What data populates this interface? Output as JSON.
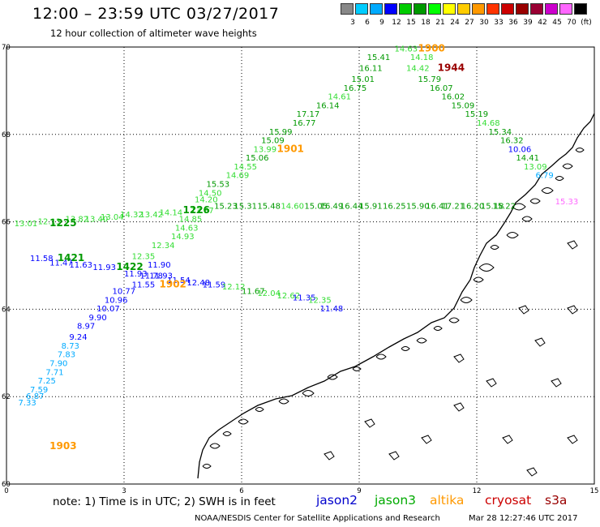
{
  "header": {
    "title": "12:00 – 23:59 UTC 03/27/2017",
    "subtitle": "12 hour collection of altimeter wave heights"
  },
  "legend": {
    "ticks": [
      "3",
      "6",
      "9",
      "12",
      "15",
      "18",
      "21",
      "24",
      "27",
      "30",
      "33",
      "36",
      "39",
      "42",
      "45",
      "70",
      "(ft)"
    ],
    "colors": [
      "#888888",
      "#00ccff",
      "#00aaff",
      "#0000ff",
      "#00cc00",
      "#009900",
      "#00ff00",
      "#ffff00",
      "#ffcc00",
      "#ff9900",
      "#ff3300",
      "#cc0000",
      "#990000",
      "#990033",
      "#cc00cc",
      "#ff66ff",
      "#000000"
    ]
  },
  "axes": {
    "x_ticks": [
      "0",
      "3",
      "6",
      "9",
      "12",
      "15"
    ],
    "y_ticks": [
      "70",
      "68",
      "66",
      "64",
      "62",
      "60"
    ]
  },
  "chart_data": {
    "type": "scatter",
    "title": "12:00 – 23:59 UTC 03/27/2017",
    "subtitle": "12 hour collection of altimeter wave heights",
    "x_range": [
      0,
      15
    ],
    "y_range": [
      60,
      70
    ],
    "units": "ft",
    "tracks": [
      {
        "mission": "jason3",
        "time": "1900",
        "time_color": "#ff9900",
        "time_pos": [
          10.5,
          69.9
        ],
        "points": [
          {
            "v": "14.63",
            "x": 9.9,
            "y": 69.9,
            "c": "#33dd33"
          },
          {
            "v": "15.41",
            "x": 9.2,
            "y": 69.7,
            "c": "#009900"
          },
          {
            "v": "14.18",
            "x": 10.3,
            "y": 69.7,
            "c": "#33dd33"
          },
          {
            "v": "16.11",
            "x": 9.0,
            "y": 69.45,
            "c": "#009900"
          },
          {
            "v": "14.42",
            "x": 10.2,
            "y": 69.45,
            "c": "#33dd33"
          },
          {
            "v": "15.01",
            "x": 8.8,
            "y": 69.2,
            "c": "#009900"
          },
          {
            "v": "15.79",
            "x": 10.5,
            "y": 69.2,
            "c": "#009900"
          },
          {
            "v": "16.75",
            "x": 8.6,
            "y": 69.0,
            "c": "#009900"
          },
          {
            "v": "16.07",
            "x": 10.8,
            "y": 69.0,
            "c": "#009900"
          },
          {
            "v": "14.61",
            "x": 8.2,
            "y": 68.8,
            "c": "#33dd33"
          },
          {
            "v": "16.02",
            "x": 11.1,
            "y": 68.8,
            "c": "#009900"
          },
          {
            "v": "16.14",
            "x": 7.9,
            "y": 68.6,
            "c": "#009900"
          },
          {
            "v": "15.09",
            "x": 11.35,
            "y": 68.6,
            "c": "#009900"
          },
          {
            "v": "17.17",
            "x": 7.4,
            "y": 68.4,
            "c": "#009900"
          },
          {
            "v": "15.19",
            "x": 11.7,
            "y": 68.4,
            "c": "#009900"
          },
          {
            "v": "16.77",
            "x": 7.3,
            "y": 68.2,
            "c": "#009900"
          },
          {
            "v": "14.68",
            "x": 12.0,
            "y": 68.2,
            "c": "#33dd33"
          },
          {
            "v": "15.99",
            "x": 6.7,
            "y": 68.0,
            "c": "#009900"
          },
          {
            "v": "15.34",
            "x": 12.3,
            "y": 68.0,
            "c": "#009900"
          },
          {
            "v": "15.09",
            "x": 6.5,
            "y": 67.8,
            "c": "#009900"
          },
          {
            "v": "16.32",
            "x": 12.6,
            "y": 67.8,
            "c": "#009900"
          },
          {
            "v": "13.99",
            "x": 6.3,
            "y": 67.6,
            "c": "#33dd33"
          },
          {
            "v": "15.06",
            "x": 6.1,
            "y": 67.4,
            "c": "#009900"
          },
          {
            "v": "14.41",
            "x": 13.0,
            "y": 67.4,
            "c": "#009900"
          },
          {
            "v": "14.55",
            "x": 5.8,
            "y": 67.2,
            "c": "#33dd33"
          },
          {
            "v": "13.09",
            "x": 13.2,
            "y": 67.2,
            "c": "#33dd33"
          },
          {
            "v": "14.69",
            "x": 5.6,
            "y": 67.0,
            "c": "#33dd33"
          },
          {
            "v": "15.53",
            "x": 5.1,
            "y": 66.8,
            "c": "#009900"
          },
          {
            "v": "14.50",
            "x": 4.9,
            "y": 66.6,
            "c": "#33dd33"
          },
          {
            "v": "14.20",
            "x": 4.8,
            "y": 66.45,
            "c": "#33dd33"
          },
          {
            "v": "13.87",
            "x": 4.7,
            "y": 66.2,
            "c": "#33dd33"
          },
          {
            "v": "14.85",
            "x": 4.4,
            "y": 66.0,
            "c": "#33dd33"
          },
          {
            "v": "14.63",
            "x": 4.3,
            "y": 65.8,
            "c": "#33dd33"
          },
          {
            "v": "14.93",
            "x": 4.2,
            "y": 65.6,
            "c": "#33dd33"
          },
          {
            "v": "12.34",
            "x": 3.7,
            "y": 65.4,
            "c": "#33dd33"
          },
          {
            "v": "12.35",
            "x": 3.2,
            "y": 65.15,
            "c": "#33dd33"
          }
        ]
      },
      {
        "mission": "altika",
        "time": "1901",
        "time_color": "#ff9900",
        "time_pos": [
          6.9,
          67.6
        ],
        "points": []
      },
      {
        "mission": "cryosat",
        "time": "1944",
        "time_color": "#990000",
        "time_pos": [
          11.0,
          69.45
        ],
        "points": []
      },
      {
        "mission": "jason3",
        "time": "1226",
        "time_color": "#009900",
        "time_pos": [
          4.5,
          66.2
        ],
        "points": [
          {
            "v": "15.23",
            "x": 5.3,
            "y": 66.3,
            "c": "#009900"
          },
          {
            "v": "15.31",
            "x": 5.8,
            "y": 66.3,
            "c": "#009900"
          },
          {
            "v": "15.48",
            "x": 6.4,
            "y": 66.3,
            "c": "#009900"
          },
          {
            "v": "14.60",
            "x": 7.0,
            "y": 66.3,
            "c": "#33dd33"
          },
          {
            "v": "15.05",
            "x": 7.6,
            "y": 66.3,
            "c": "#009900"
          },
          {
            "v": "16.49",
            "x": 8.0,
            "y": 66.3,
            "c": "#009900"
          },
          {
            "v": "16.44",
            "x": 8.5,
            "y": 66.3,
            "c": "#009900"
          },
          {
            "v": "15.91",
            "x": 9.0,
            "y": 66.3,
            "c": "#009900"
          },
          {
            "v": "16.25",
            "x": 9.6,
            "y": 66.3,
            "c": "#009900"
          },
          {
            "v": "15.90",
            "x": 10.2,
            "y": 66.3,
            "c": "#009900"
          },
          {
            "v": "16.41",
            "x": 10.7,
            "y": 66.3,
            "c": "#009900"
          },
          {
            "v": "17.21",
            "x": 11.1,
            "y": 66.3,
            "c": "#009900"
          },
          {
            "v": "16.20",
            "x": 11.6,
            "y": 66.3,
            "c": "#009900"
          },
          {
            "v": "15.18",
            "x": 12.1,
            "y": 66.3,
            "c": "#009900"
          },
          {
            "v": "15.22",
            "x": 12.4,
            "y": 66.3,
            "c": "#009900"
          }
        ]
      },
      {
        "mission": "jason3",
        "time": "1225",
        "time_color": "#009900",
        "time_pos": [
          1.1,
          65.9
        ],
        "points": [
          {
            "v": "13.01",
            "x": 0.2,
            "y": 65.9,
            "c": "#33dd33"
          },
          {
            "v": "12.13",
            "x": 0.8,
            "y": 65.95,
            "c": "#33dd33"
          },
          {
            "v": "13.82",
            "x": 1.5,
            "y": 66.0,
            "c": "#33dd33"
          },
          {
            "v": "13.40",
            "x": 2.0,
            "y": 66.0,
            "c": "#33dd33"
          },
          {
            "v": "13.04",
            "x": 2.4,
            "y": 66.05,
            "c": "#33dd33"
          },
          {
            "v": "14.32",
            "x": 2.9,
            "y": 66.1,
            "c": "#33dd33"
          },
          {
            "v": "13.42",
            "x": 3.4,
            "y": 66.1,
            "c": "#33dd33"
          },
          {
            "v": "14.14",
            "x": 3.9,
            "y": 66.15,
            "c": "#33dd33"
          }
        ]
      },
      {
        "mission": "jason2",
        "time": "1421",
        "time_color": "#009900",
        "time_pos": [
          1.3,
          65.1
        ],
        "points": [
          {
            "v": "11.58",
            "x": 0.6,
            "y": 65.1,
            "c": "#0000ff"
          },
          {
            "v": "11.47",
            "x": 1.1,
            "y": 65.0,
            "c": "#0000ff"
          },
          {
            "v": "11.63",
            "x": 1.6,
            "y": 64.95,
            "c": "#0000ff"
          },
          {
            "v": "11.93",
            "x": 2.2,
            "y": 64.9,
            "c": "#0000ff"
          }
        ]
      },
      {
        "mission": "jason2",
        "time": "1422",
        "time_color": "#009900",
        "time_pos": [
          2.8,
          64.9
        ],
        "points": [
          {
            "v": "11.90",
            "x": 3.6,
            "y": 64.95,
            "c": "#0000ff"
          },
          {
            "v": "11.93",
            "x": 3.0,
            "y": 64.75,
            "c": "#0000ff"
          },
          {
            "v": "11.78",
            "x": 3.4,
            "y": 64.7,
            "c": "#0000ff"
          },
          {
            "v": "11.93",
            "x": 3.65,
            "y": 64.7,
            "c": "#0000ff"
          },
          {
            "v": "11.54",
            "x": 4.1,
            "y": 64.6,
            "c": "#0000ff"
          },
          {
            "v": "11.55",
            "x": 3.2,
            "y": 64.5,
            "c": "#0000ff"
          },
          {
            "v": "12.48",
            "x": 4.6,
            "y": 64.55,
            "c": "#0000ff"
          },
          {
            "v": "11.59",
            "x": 5.0,
            "y": 64.5,
            "c": "#0000ff"
          },
          {
            "v": "12.12",
            "x": 5.5,
            "y": 64.45,
            "c": "#33dd33"
          },
          {
            "v": "11.67",
            "x": 6.0,
            "y": 64.35,
            "c": "#009900"
          },
          {
            "v": "12.04",
            "x": 6.4,
            "y": 64.3,
            "c": "#33dd33"
          },
          {
            "v": "12.62",
            "x": 6.9,
            "y": 64.25,
            "c": "#33dd33"
          },
          {
            "v": "11.35",
            "x": 7.3,
            "y": 64.2,
            "c": "#0000ff"
          },
          {
            "v": "12.35",
            "x": 7.7,
            "y": 64.15,
            "c": "#33dd33"
          },
          {
            "v": "11.48",
            "x": 8.0,
            "y": 63.95,
            "c": "#0000ff"
          }
        ]
      },
      {
        "mission": "altika",
        "time": "1902",
        "time_color": "#ff9900",
        "time_pos": [
          3.9,
          64.5
        ],
        "points": []
      },
      {
        "mission": "jason2",
        "time": "1903",
        "time_color": "#ff9900",
        "time_pos": [
          1.1,
          60.8
        ],
        "points": [
          {
            "v": "10.77",
            "x": 2.7,
            "y": 64.35,
            "c": "#0000ff"
          },
          {
            "v": "10.96",
            "x": 2.5,
            "y": 64.15,
            "c": "#0000ff"
          },
          {
            "v": "10.07",
            "x": 2.3,
            "y": 63.95,
            "c": "#0000ff"
          },
          {
            "v": "9.90",
            "x": 2.1,
            "y": 63.75,
            "c": "#0000ff"
          },
          {
            "v": "8.97",
            "x": 1.8,
            "y": 63.55,
            "c": "#0000ff"
          },
          {
            "v": "9.24",
            "x": 1.6,
            "y": 63.3,
            "c": "#0000ff"
          },
          {
            "v": "8.73",
            "x": 1.4,
            "y": 63.1,
            "c": "#00aaff"
          },
          {
            "v": "7.83",
            "x": 1.3,
            "y": 62.9,
            "c": "#00aaff"
          },
          {
            "v": "7.90",
            "x": 1.1,
            "y": 62.7,
            "c": "#00aaff"
          },
          {
            "v": "7.71",
            "x": 1.0,
            "y": 62.5,
            "c": "#00aaff"
          },
          {
            "v": "7.25",
            "x": 0.8,
            "y": 62.3,
            "c": "#00aaff"
          },
          {
            "v": "7.59",
            "x": 0.6,
            "y": 62.1,
            "c": "#00aaff"
          },
          {
            "v": "6.87",
            "x": 0.5,
            "y": 61.95,
            "c": "#00aaff"
          },
          {
            "v": "7.33",
            "x": 0.3,
            "y": 61.8,
            "c": "#00aaff"
          }
        ]
      },
      {
        "mission": "jason2",
        "time": "",
        "time_color": "#0000ff",
        "time_pos": [
          0,
          0
        ],
        "points": [
          {
            "v": "10.06",
            "x": 12.8,
            "y": 67.6,
            "c": "#0000ff"
          },
          {
            "v": "6.79",
            "x": 13.5,
            "y": 67.0,
            "c": "#00aaff"
          }
        ]
      },
      {
        "mission": "s3a",
        "time": "",
        "time_color": "#cc0000",
        "time_pos": [
          0,
          0
        ],
        "points": [
          {
            "v": "15.33",
            "x": 14.0,
            "y": 66.4,
            "c": "#ff66ff"
          }
        ]
      }
    ]
  },
  "footer": {
    "note": "note: 1) Time is in UTC; 2) SWH is in feet",
    "missions": [
      {
        "label": "jason2",
        "color": "#0000cc"
      },
      {
        "label": "jason3",
        "color": "#00aa00"
      },
      {
        "label": "altika",
        "color": "#ff9900"
      },
      {
        "label": "cryosat",
        "color": "#cc0000"
      },
      {
        "label": "s3a",
        "color": "#990000"
      }
    ],
    "credit": "NOAA/NESDIS Center for Satellite Applications and Research",
    "timestamp": "Mar 28 12:27:46 UTC 2017"
  }
}
